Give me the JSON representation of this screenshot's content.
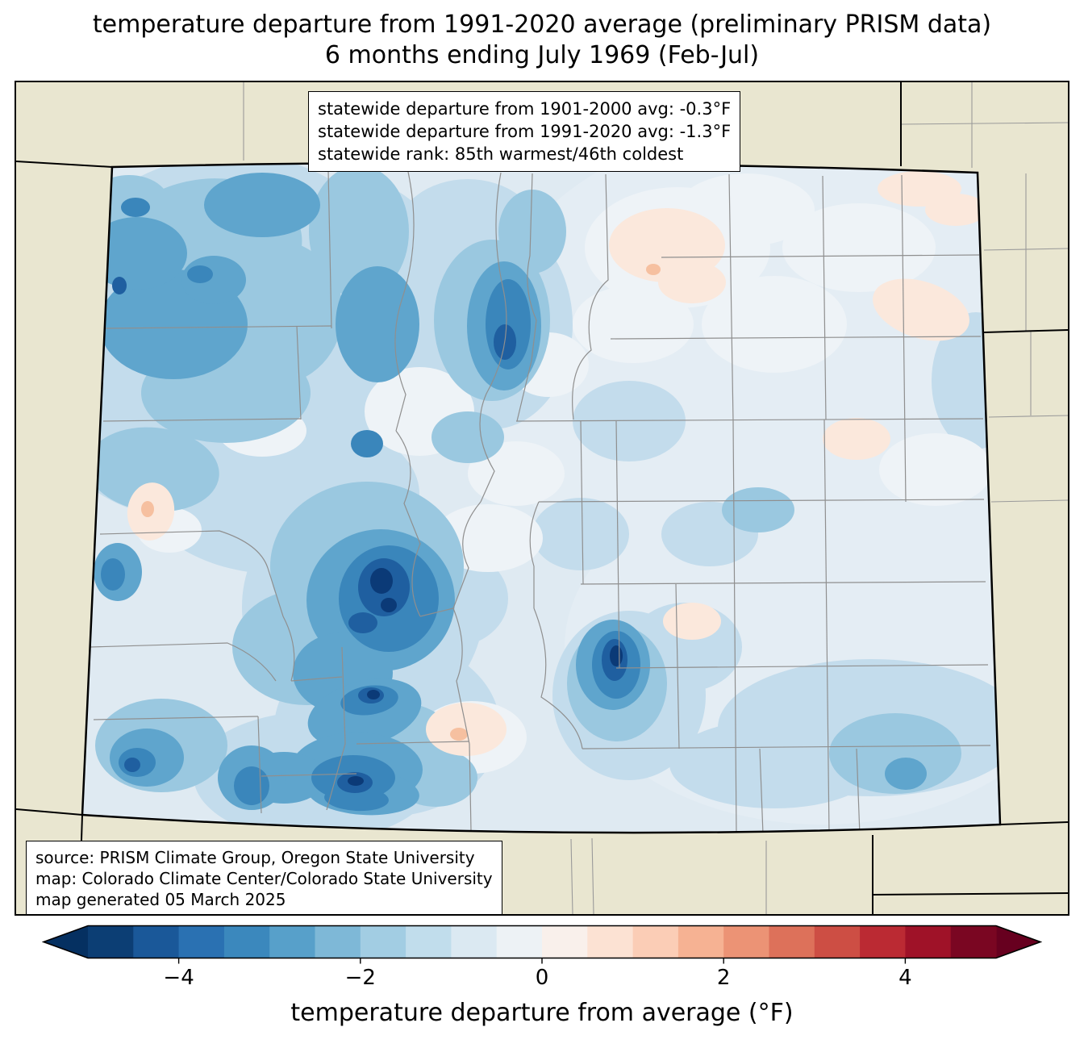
{
  "title": {
    "line1": "temperature departure from 1991-2020 average (preliminary PRISM data)",
    "line2": "6 months ending July 1969 (Feb-Jul)"
  },
  "stats_box": {
    "line1": "statewide departure from 1901-2000 avg: -0.3°F",
    "line2": "statewide departure from 1991-2020 avg: -1.3°F",
    "line3": "statewide rank: 85th warmest/46th coldest"
  },
  "source_box": {
    "line1": "source: PRISM Climate Group, Oregon State University",
    "line2": "map: Colorado Climate Center/Colorado State University",
    "line3": "map generated 05 March 2025"
  },
  "colorbar": {
    "axis_label": "temperature departure from average (°F)",
    "range": [
      -5,
      5
    ],
    "ticks": [
      {
        "value": -4,
        "label": "−4"
      },
      {
        "value": -2,
        "label": "−2"
      },
      {
        "value": 0,
        "label": "0"
      },
      {
        "value": 2,
        "label": "2"
      },
      {
        "value": 4,
        "label": "4"
      }
    ],
    "segments": [
      "#0c3e74",
      "#1a5899",
      "#2a71b2",
      "#3b88bd",
      "#57a0ca",
      "#7eb8d7",
      "#a2cde3",
      "#c1ddec",
      "#dbe9f2",
      "#edf2f5",
      "#f9f0eb",
      "#fce2d3",
      "#fbcdb6",
      "#f6b293",
      "#ec9375",
      "#dd715a",
      "#cd4e44",
      "#bb2a33",
      "#9f1228",
      "#7a0622"
    ],
    "left_arrow": "#053061",
    "right_arrow": "#67001f"
  },
  "map": {
    "background": "#e9e6d0",
    "state_base_fill": "#dfeaf2",
    "border_color": "#000000",
    "county_line_color": "#8f8f8f"
  }
}
